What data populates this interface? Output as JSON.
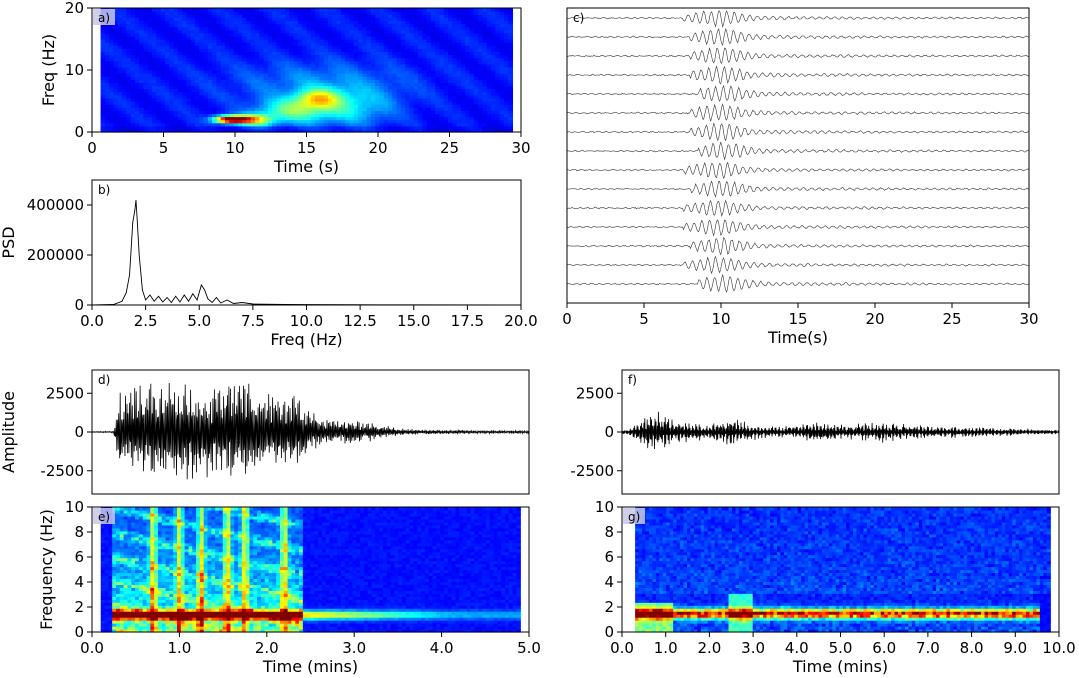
{
  "figure": {
    "panels": [
      {
        "id": "a",
        "label": "a)",
        "kind": "spectrogram"
      },
      {
        "id": "b",
        "label": "b)",
        "kind": "line"
      },
      {
        "id": "c",
        "label": "c)",
        "kind": "traces"
      },
      {
        "id": "d",
        "label": "d)",
        "kind": "waveform"
      },
      {
        "id": "e",
        "label": "e)",
        "kind": "spectrogram"
      },
      {
        "id": "f",
        "label": "f)",
        "kind": "waveform"
      },
      {
        "id": "g",
        "label": "g)",
        "kind": "spectrogram"
      }
    ]
  },
  "chart_data": [
    {
      "panel": "a",
      "type": "heatmap",
      "label": "a)",
      "xlabel": "Time (s)",
      "ylabel": "Freq (Hz)",
      "xlim": [
        0,
        30
      ],
      "ylim": [
        0,
        20
      ],
      "xticks": [
        0,
        5,
        10,
        15,
        20,
        25,
        30
      ],
      "yticks": [
        0,
        10,
        20
      ],
      "xticklabels": [
        "0",
        "5",
        "10",
        "15",
        "20",
        "25",
        "30"
      ],
      "yticklabels": [
        "0",
        "10",
        "20"
      ],
      "data_xrange": [
        0.6,
        29.4
      ],
      "colormap": "jet",
      "hotspots": [
        {
          "t": 9.8,
          "f": 2.1,
          "intensity": 1.0,
          "dt": 1.2,
          "df": 0.6
        },
        {
          "t": 11.5,
          "f": 2.0,
          "intensity": 0.4,
          "dt": 1.2,
          "df": 1.0
        },
        {
          "t": 15.8,
          "f": 5.5,
          "intensity": 0.35,
          "dt": 1.5,
          "df": 1.5
        },
        {
          "t": 14.0,
          "f": 3.5,
          "intensity": 0.3,
          "dt": 2.5,
          "df": 2.0
        },
        {
          "t": 18.0,
          "f": 4.0,
          "intensity": 0.2,
          "dt": 3.0,
          "df": 3.0
        },
        {
          "t": 16.0,
          "f": 8.0,
          "intensity": 0.12,
          "dt": 6.0,
          "df": 3.5
        }
      ]
    },
    {
      "panel": "b",
      "type": "line",
      "label": "b)",
      "xlabel": "Freq (Hz)",
      "ylabel": "PSD",
      "xlim": [
        0,
        20
      ],
      "ylim": [
        0,
        500000
      ],
      "xticks": [
        0,
        2.5,
        5,
        7.5,
        10,
        12.5,
        15,
        17.5,
        20
      ],
      "xticklabels": [
        "0.0",
        "2.5",
        "5.0",
        "7.5",
        "10.0",
        "12.5",
        "15.0",
        "17.5",
        "20.0"
      ],
      "yticks": [
        0,
        200000,
        400000
      ],
      "yticklabels": [
        "0",
        "200000",
        "400000"
      ],
      "x": [
        0,
        1.0,
        1.4,
        1.6,
        1.75,
        1.9,
        2.0,
        2.05,
        2.1,
        2.2,
        2.35,
        2.5,
        2.7,
        2.9,
        3.1,
        3.3,
        3.5,
        3.7,
        3.9,
        4.1,
        4.3,
        4.5,
        4.7,
        4.9,
        5.1,
        5.25,
        5.4,
        5.6,
        5.8,
        6.0,
        6.3,
        6.6,
        7.0,
        7.5,
        8.0,
        9.0,
        10.0,
        12.0,
        15.0,
        20.0
      ],
      "y": [
        0,
        2000,
        15000,
        50000,
        120000,
        330000,
        380000,
        420000,
        350000,
        200000,
        60000,
        20000,
        40000,
        15000,
        35000,
        12000,
        30000,
        10000,
        35000,
        12000,
        40000,
        15000,
        45000,
        20000,
        80000,
        60000,
        25000,
        10000,
        30000,
        8000,
        20000,
        6000,
        10000,
        4000,
        3000,
        2000,
        1500,
        1000,
        500,
        0
      ]
    },
    {
      "panel": "c",
      "type": "line",
      "label": "c)",
      "xlabel": "Time(s)",
      "xlim": [
        0,
        30
      ],
      "xticks": [
        0,
        5,
        10,
        15,
        20,
        25,
        30
      ],
      "xticklabels": [
        "0",
        "5",
        "10",
        "15",
        "20",
        "25",
        "30"
      ],
      "trace_count": 15,
      "onset_s": [
        7.5,
        8.0,
        8.0,
        8.0,
        8.5,
        8.0,
        8.0,
        8.5,
        7.5,
        8.0,
        7.5,
        7.5,
        8.0,
        7.5,
        8.5
      ],
      "peak_s": [
        9.8,
        10.0,
        10.0,
        10.0,
        10.2,
        10.0,
        10.0,
        10.2,
        9.8,
        10.0,
        9.8,
        9.8,
        10.0,
        9.8,
        10.2
      ]
    },
    {
      "panel": "d",
      "type": "line",
      "label": "d)",
      "ylabel": "Amplitude",
      "xlim": [
        0,
        5
      ],
      "ylim": [
        -4000,
        4000
      ],
      "yticks": [
        2500,
        0,
        -2500
      ],
      "yticklabels": [
        "2500",
        "0",
        "-2500"
      ],
      "envelope_mins": [
        0,
        0.25,
        0.3,
        0.5,
        0.8,
        1.0,
        1.3,
        1.5,
        1.8,
        2.0,
        2.3,
        2.5,
        2.7,
        3.0,
        3.3,
        3.6,
        4.0,
        4.5,
        4.9
      ],
      "envelope_amp": [
        30,
        50,
        2500,
        3000,
        3500,
        3200,
        3000,
        3300,
        3500,
        2500,
        2800,
        1500,
        900,
        800,
        500,
        200,
        150,
        120,
        100
      ]
    },
    {
      "panel": "e",
      "type": "heatmap",
      "label": "e)",
      "xlabel": "Time (mins)",
      "ylabel": "Frequency (Hz)",
      "xlim": [
        0,
        5
      ],
      "ylim": [
        0,
        10
      ],
      "xticks": [
        0,
        1,
        2,
        3,
        4,
        5
      ],
      "xticklabels": [
        "0.0",
        "1.0",
        "2.0",
        "3.0",
        "4.0",
        "5.0"
      ],
      "yticks": [
        0,
        2,
        4,
        6,
        8,
        10
      ],
      "yticklabels": [
        "0",
        "2",
        "4",
        "6",
        "8",
        "10"
      ],
      "data_xrange": [
        0.1,
        4.9
      ],
      "colormap": "jet",
      "band_hz": 1.4,
      "band_range_mins": [
        0.25,
        4.9
      ],
      "activity_range_mins": [
        0.25,
        2.4
      ]
    },
    {
      "panel": "f",
      "type": "line",
      "label": "f)",
      "xlim": [
        0,
        10
      ],
      "ylim": [
        -4000,
        4000
      ],
      "yticks": [
        2500,
        0,
        -2500
      ],
      "yticklabels": [
        "2500",
        "0",
        "-2500"
      ],
      "envelope_mins": [
        0,
        0.2,
        0.5,
        0.8,
        1.2,
        1.6,
        2.0,
        2.5,
        2.8,
        3.2,
        3.6,
        4.0,
        4.5,
        5.0,
        5.5,
        6.0,
        6.5,
        7.0,
        7.5,
        8.0,
        8.5,
        9.0,
        9.5,
        9.9
      ],
      "envelope_amp": [
        100,
        300,
        1200,
        1500,
        800,
        600,
        500,
        1000,
        700,
        400,
        400,
        450,
        700,
        500,
        600,
        700,
        500,
        400,
        400,
        350,
        300,
        250,
        200,
        150
      ]
    },
    {
      "panel": "g",
      "type": "heatmap",
      "label": "g)",
      "xlabel": "Time (mins)",
      "xlim": [
        0,
        10
      ],
      "ylim": [
        0,
        10
      ],
      "xticks": [
        0,
        1,
        2,
        3,
        4,
        5,
        6,
        7,
        8,
        9,
        10
      ],
      "xticklabels": [
        "0.0",
        "1.0",
        "2.0",
        "3.0",
        "4.0",
        "5.0",
        "6.0",
        "7.0",
        "8.0",
        "9.0",
        "10.0"
      ],
      "yticks": [
        0,
        2,
        4,
        6,
        8,
        10
      ],
      "yticklabels": [
        "0",
        "2",
        "4",
        "6",
        "8",
        "10"
      ],
      "data_xrange": [
        0.3,
        9.8
      ],
      "colormap": "jet",
      "band_hz": 1.5,
      "band_range_mins": [
        0.3,
        9.6
      ]
    }
  ]
}
